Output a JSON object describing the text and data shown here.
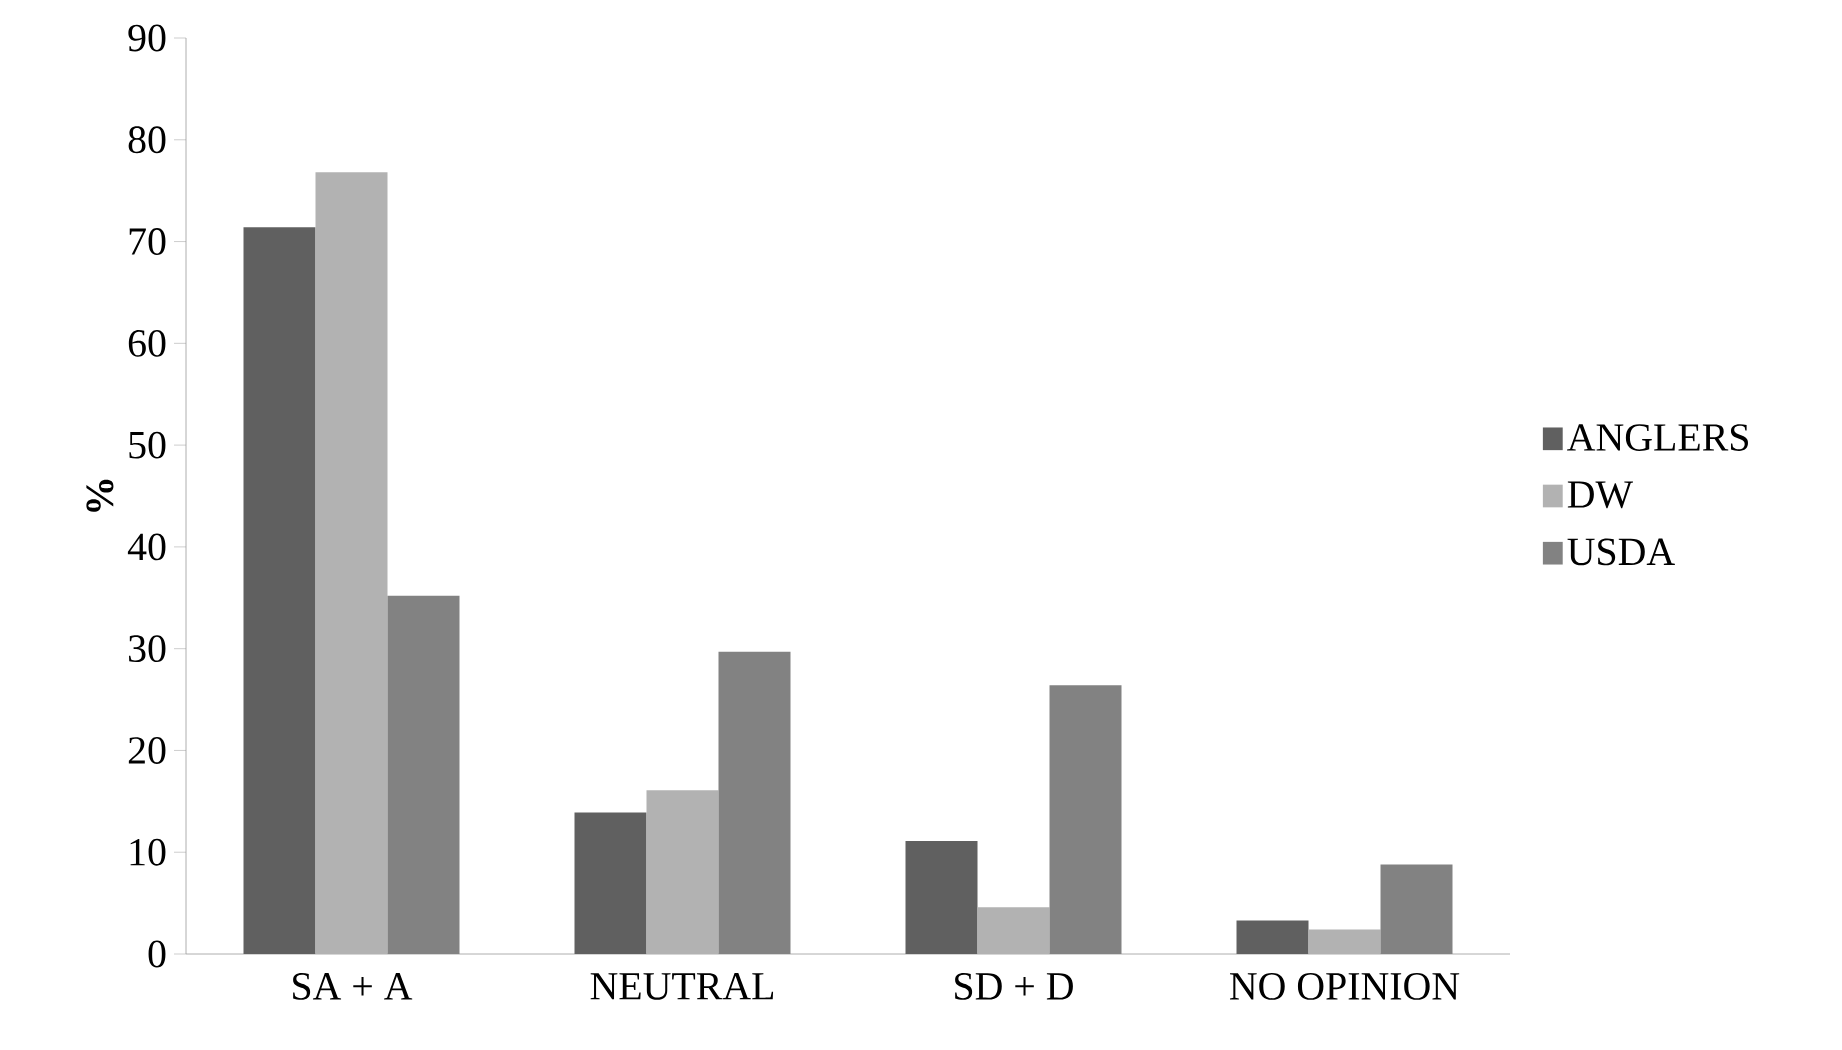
{
  "chart_data": {
    "type": "bar",
    "ylabel": "%",
    "categories": [
      "SA + A",
      "NEUTRAL",
      "SD + D",
      "NO OPINION"
    ],
    "series": [
      {
        "name": "ANGLERS",
        "color": "#606060",
        "values": [
          71.4,
          13.9,
          11.1,
          3.3
        ]
      },
      {
        "name": "DW",
        "color": "#b2b2b2",
        "values": [
          76.8,
          16.1,
          4.6,
          2.4
        ]
      },
      {
        "name": "USDA",
        "color": "#828282",
        "values": [
          35.2,
          29.7,
          26.4,
          8.8
        ]
      }
    ],
    "ylim": [
      0,
      90
    ],
    "yticks": [
      0,
      10,
      20,
      30,
      40,
      50,
      60,
      70,
      80,
      90
    ],
    "grid": false,
    "legend": "right"
  }
}
